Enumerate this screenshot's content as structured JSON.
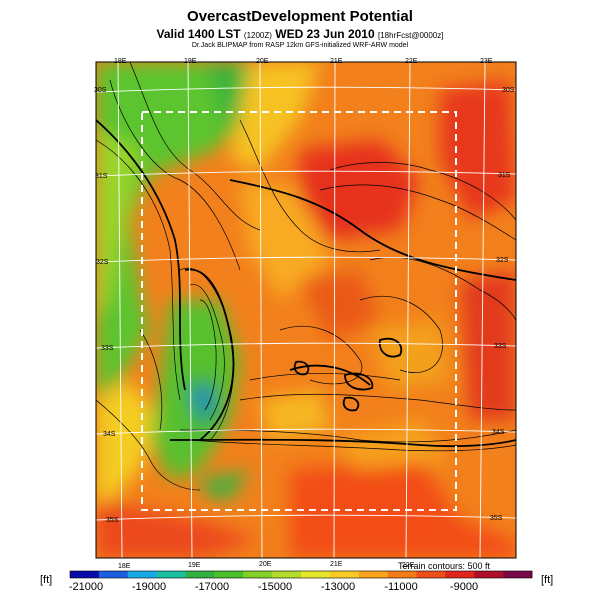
{
  "header": {
    "title": "OvercastDevelopment Potential",
    "valid_main": "Valid 1400 LST",
    "valid_small": "(1200Z)",
    "valid_date": "WED 23 Jun 2010",
    "forecast_tag": "[18hrFcst@0000z]",
    "credit": "Dr.Jack BLIPMAP from RASP 12km GFS-initialized WRF-ARW model"
  },
  "map": {
    "lon_top_labels": [
      "18E",
      "19E",
      "20E",
      "21E",
      "22E",
      "23E"
    ],
    "lon_bottom_labels": [
      "18E",
      "19E",
      "20E",
      "21E",
      "22E"
    ],
    "lat_left_labels": [
      "30S",
      "31S",
      "32S",
      "33S",
      "34S",
      "35S"
    ],
    "lat_right_labels": [
      "30S",
      "31S",
      "32S",
      "33S",
      "34S",
      "35S"
    ],
    "terrain_note": "Terrain contours: 500 ft"
  },
  "colorbar": {
    "unit_left": "[ft]",
    "unit_right": "[ft]",
    "tick_labels": [
      "-21000",
      "-19000",
      "-17000",
      "-15000",
      "-13000",
      "-11000",
      "-9000"
    ],
    "colors": [
      "#0a0aaa",
      "#1b5fe0",
      "#17a8e8",
      "#18c0a0",
      "#30b040",
      "#4cc02c",
      "#82d028",
      "#b4dc2c",
      "#e6e62a",
      "#f8cc24",
      "#f9a41d",
      "#f57a18",
      "#ee4f17",
      "#e1251e",
      "#b00f2a",
      "#780a4a"
    ]
  }
}
